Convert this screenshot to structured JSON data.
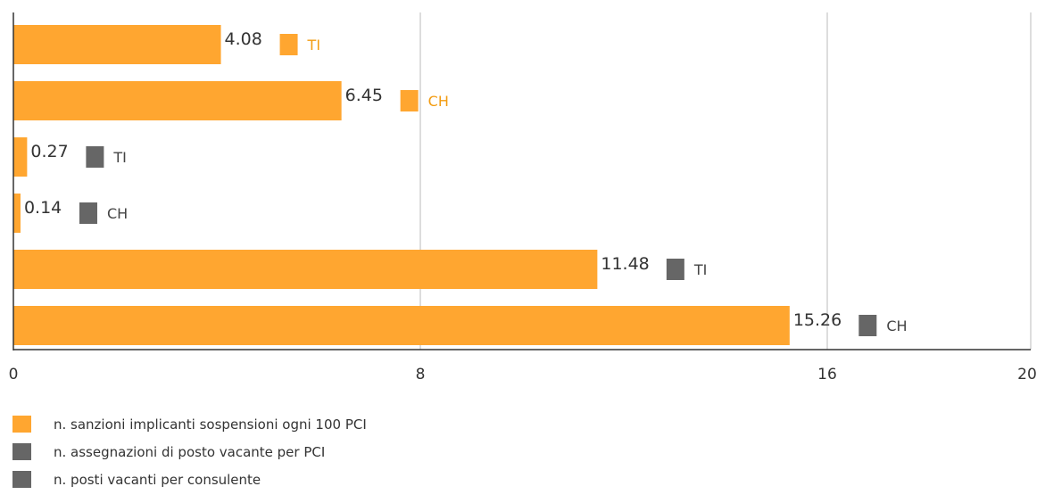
{
  "colors": {
    "orange": "#FFA630",
    "orange_text": "#F39C12",
    "gray": "#666666",
    "gray_text": "#444444",
    "axis": "#333333",
    "grid": "#BBBBBB"
  },
  "chart_data": {
    "type": "bar",
    "orientation": "horizontal",
    "xlim": [
      0,
      20
    ],
    "x_ticks": [
      0,
      8,
      16,
      20
    ],
    "grid": true,
    "bars": [
      {
        "value": 4.08,
        "label": "4.08",
        "tag": "TI",
        "tag_color": "orange"
      },
      {
        "value": 6.45,
        "label": "6.45",
        "tag": "CH",
        "tag_color": "orange"
      },
      {
        "value": 0.27,
        "label": "0.27",
        "tag": "TI",
        "tag_color": "gray"
      },
      {
        "value": 0.14,
        "label": "0.14",
        "tag": "CH",
        "tag_color": "gray"
      },
      {
        "value": 11.48,
        "label": "11.48",
        "tag": "TI",
        "tag_color": "gray"
      },
      {
        "value": 15.26,
        "label": "15.26",
        "tag": "CH",
        "tag_color": "gray"
      }
    ],
    "legend": [
      {
        "label": "n. sanzioni implicanti sospensioni ogni 100 PCI",
        "color": "orange"
      },
      {
        "label": "n. assegnazioni di posto vacante per PCI",
        "color": "gray"
      },
      {
        "label": "n. posti vacanti per consulente",
        "color": "gray"
      }
    ],
    "legend_position": "bottom-left"
  }
}
